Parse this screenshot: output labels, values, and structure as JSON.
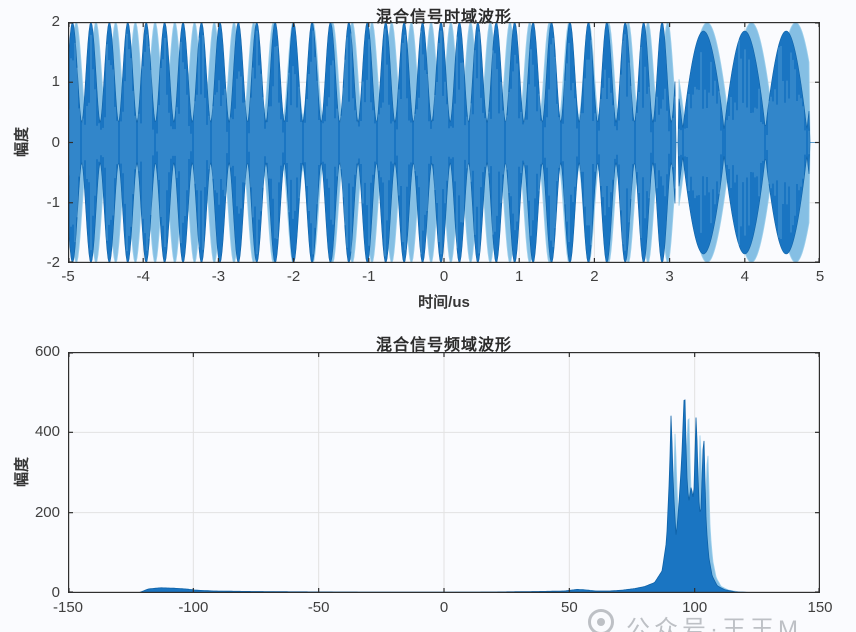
{
  "figure": {
    "background": "#fafbfe",
    "watermark": {
      "icon": "publisher-logo-icon",
      "text": "公众号·王王M"
    }
  },
  "colors": {
    "line_dark": "#1a75c2",
    "line_dark_stroke": "#0e62a8",
    "line_light": "#85bfe4",
    "line_light_stroke": "#9ed0ec",
    "streak": "#8cc4e8",
    "grid": "#e2e2e2",
    "axis": "#2f2f2f",
    "text": "#3f3f3f"
  },
  "chart_data": [
    {
      "type": "line",
      "title": "混合信号时域波形",
      "xlabel": "时间/us",
      "ylabel": "幅度",
      "xlim": [
        -5,
        5
      ],
      "ylim": [
        -2,
        2
      ],
      "xticks": [
        -5,
        -4,
        -3,
        -2,
        -1,
        0,
        1,
        2,
        3,
        4,
        5
      ],
      "yticks": [
        2,
        1,
        0,
        -1,
        -2
      ],
      "grid": true,
      "legend": null,
      "description": "Dense amplitude-modulated mixed signal: fast oscillation with beat envelopes; narrow spindle beats from -5 to ~3.1 us, wider slow beats from ~3.1 to ~4.9 us, amplitude within ±2.",
      "synthesis": {
        "segments": [
          {
            "t_start": -5.0,
            "t_end": 3.08,
            "hump_period": 0.245,
            "phase": -4.94,
            "base": 0.33,
            "peak": 2.0,
            "tip_power": 1.7
          },
          {
            "t_start": 3.12,
            "t_end": 4.86,
            "hump_period": 0.55,
            "phase": 3.45,
            "base": 0.2,
            "peak": 1.85,
            "tip_power": 0.9
          }
        ]
      }
    },
    {
      "type": "line",
      "title": "混合信号频域波形",
      "xlabel": "",
      "ylabel": "幅度",
      "xlim": [
        -150,
        150
      ],
      "ylim": [
        0,
        600
      ],
      "xticks": [
        -150,
        -100,
        -50,
        0,
        50,
        100,
        150
      ],
      "yticks": [
        0,
        200,
        400,
        600
      ],
      "grid": true,
      "legend": null,
      "description": "Spectrum of the mixed signal: near-zero floor with a small plateau near -115..-100, minor bump near 55, and a main multi-peak cluster between 88 and 108 (peaks ~452, ~520, ~452, ~408).",
      "points": [
        [
          -150,
          0
        ],
        [
          -122,
          0
        ],
        [
          -118,
          10
        ],
        [
          -113,
          13
        ],
        [
          -108,
          12
        ],
        [
          -103,
          10
        ],
        [
          -99,
          7
        ],
        [
          -92,
          5
        ],
        [
          -80,
          4
        ],
        [
          -60,
          3
        ],
        [
          -40,
          2.5
        ],
        [
          -20,
          2
        ],
        [
          0,
          2
        ],
        [
          20,
          2.5
        ],
        [
          40,
          4
        ],
        [
          48,
          5
        ],
        [
          53,
          9
        ],
        [
          56,
          8
        ],
        [
          60,
          5
        ],
        [
          66,
          5
        ],
        [
          71,
          7
        ],
        [
          76,
          11
        ],
        [
          80,
          16
        ],
        [
          84,
          26
        ],
        [
          87,
          55
        ],
        [
          88.8,
          130
        ],
        [
          90,
          300
        ],
        [
          90.6,
          452
        ],
        [
          91.5,
          260
        ],
        [
          92.6,
          140
        ],
        [
          93.6,
          210
        ],
        [
          94.8,
          330
        ],
        [
          96,
          520
        ],
        [
          96.8,
          300
        ],
        [
          97.6,
          225
        ],
        [
          98.6,
          265
        ],
        [
          99.6,
          230
        ],
        [
          100.6,
          452
        ],
        [
          101.6,
          235
        ],
        [
          102.4,
          185
        ],
        [
          103.6,
          408
        ],
        [
          104.6,
          170
        ],
        [
          105.6,
          90
        ],
        [
          107,
          42
        ],
        [
          109,
          18
        ],
        [
          112,
          8
        ],
        [
          116,
          3
        ],
        [
          122,
          1
        ],
        [
          128,
          0
        ],
        [
          150,
          0
        ]
      ]
    }
  ]
}
